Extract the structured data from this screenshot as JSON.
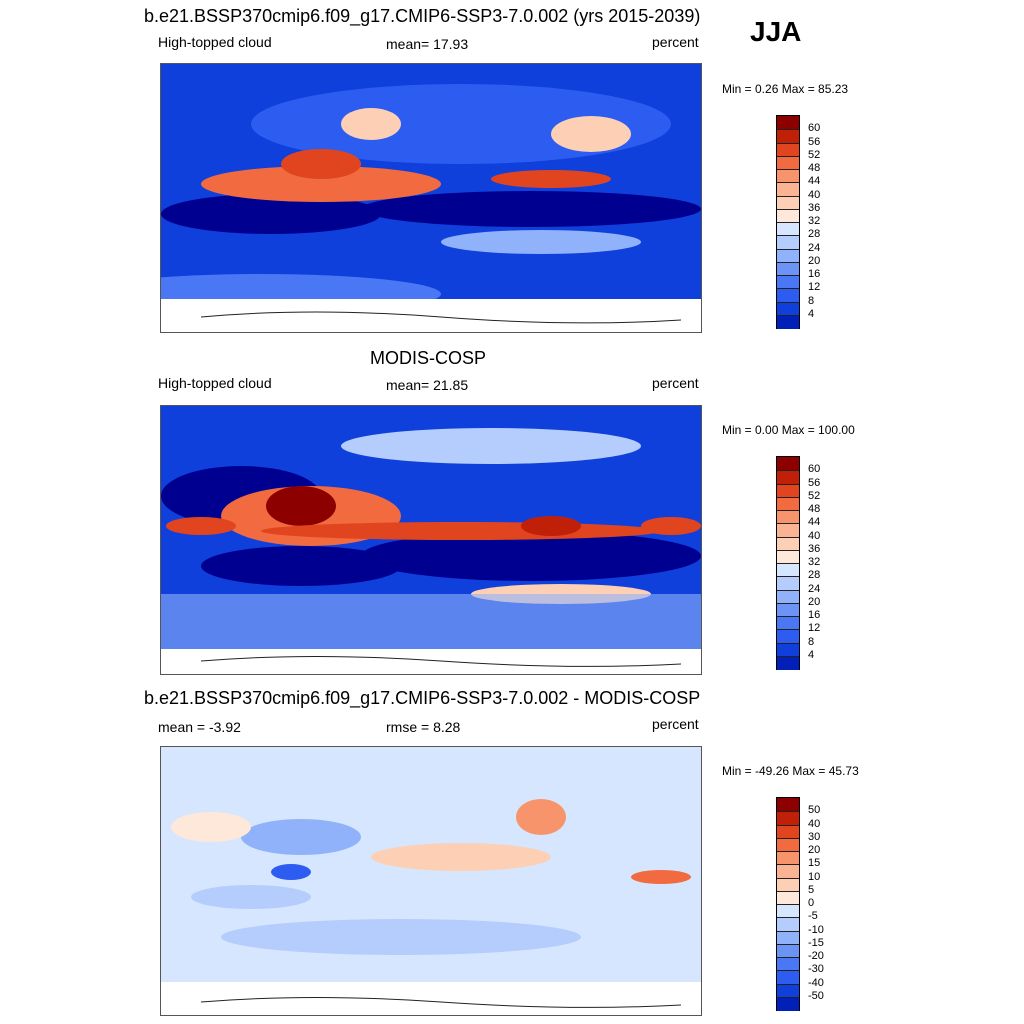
{
  "season_label": "JJA",
  "colors": {
    "seq": [
      "#000090",
      "#0020b8",
      "#1040dc",
      "#2d5cf0",
      "#4a78f5",
      "#6c94f7",
      "#90b2fa",
      "#b4cdfc",
      "#d6e6fe",
      "#fde8da",
      "#fdd0b5",
      "#fbb493",
      "#f8946b",
      "#f26b40",
      "#e04520",
      "#c02008",
      "#8c0000"
    ],
    "diff": [
      "#000090",
      "#0020b8",
      "#1040dc",
      "#2d5cf0",
      "#4a78f5",
      "#6c94f7",
      "#90b2fa",
      "#b4cdfc",
      "#d6e6fe",
      "#fde8da",
      "#fdd0b5",
      "#fbb493",
      "#f8946b",
      "#f26b40",
      "#e04520",
      "#c02008",
      "#8c0000"
    ]
  },
  "panels": [
    {
      "id": "model",
      "title": "b.e21.BSSP370cmip6.f09_g17.CMIP6-SSP3-7.0.002 (yrs 2015-2039)",
      "left_label": "High-topped cloud",
      "center_label": "mean=  17.93",
      "right_label": "percent",
      "minmax": "Min =    0.26 Max =  85.23",
      "colorbar_labels": [
        "60",
        "56",
        "52",
        "48",
        "44",
        "40",
        "36",
        "32",
        "28",
        "24",
        "20",
        "16",
        "12",
        "8",
        "4"
      ],
      "field_description": "high-topped cloud fraction map"
    },
    {
      "id": "obs",
      "title": "MODIS-COSP",
      "left_label": "High-topped cloud",
      "center_label": "mean=  21.85",
      "right_label": "percent",
      "minmax": "Min =    0.00 Max = 100.00",
      "colorbar_labels": [
        "60",
        "56",
        "52",
        "48",
        "44",
        "40",
        "36",
        "32",
        "28",
        "24",
        "20",
        "16",
        "12",
        "8",
        "4"
      ],
      "field_description": "observed high-topped cloud map"
    },
    {
      "id": "diff",
      "title": "b.e21.BSSP370cmip6.f09_g17.CMIP6-SSP3-7.0.002 - MODIS-COSP",
      "left_label": "mean =  -3.92",
      "center_label": "rmse =   8.28",
      "right_label": "percent",
      "minmax": "Min = -49.26 Max =  45.73",
      "colorbar_labels": [
        "50",
        "40",
        "30",
        "20",
        "15",
        "10",
        "5",
        "0",
        "-5",
        "-10",
        "-15",
        "-20",
        "-30",
        "-40",
        "-50"
      ],
      "field_description": "difference map"
    }
  ]
}
